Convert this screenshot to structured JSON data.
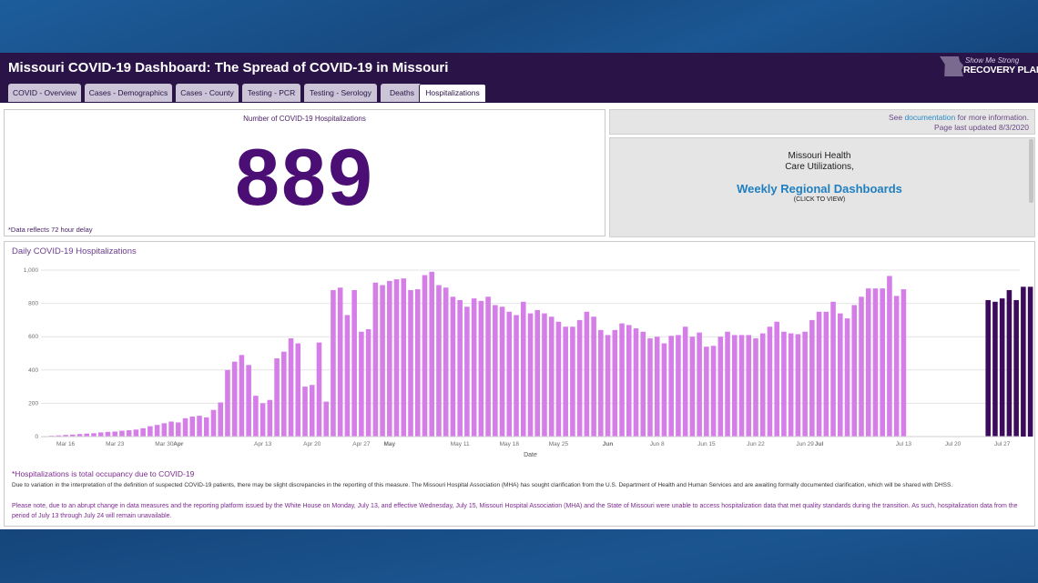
{
  "header": {
    "title": "Missouri COVID-19 Dashboard: The Spread of COVID-19 in Missouri",
    "logo_tagline": "Show Me Strong",
    "logo_name": "RECOVERY PLAN"
  },
  "tabs": [
    {
      "label": "COVID - Overview",
      "active": false
    },
    {
      "label": "Cases - Demographics",
      "active": false
    },
    {
      "label": "Cases - County",
      "active": false
    },
    {
      "label": "Testing - PCR",
      "active": false
    },
    {
      "label": "Testing - Serology",
      "active": false
    },
    {
      "label": "Deaths",
      "active": false
    },
    {
      "label": "Hospitalizations",
      "active": true
    }
  ],
  "kpi": {
    "title": "Number of COVID-19 Hospitalizations",
    "value": "889",
    "note": "*Data reflects 72 hour delay"
  },
  "info": {
    "see": "See ",
    "link": "documentation",
    "more": " for more information.",
    "updated": "Page last updated 8/3/2020"
  },
  "healthcare": {
    "line1": "Missouri Health",
    "line2": "Care Utilizations,",
    "link": "Weekly Regional Dashboards",
    "click": "(CLICK TO VIEW)"
  },
  "notes": {
    "occupancy": "*Hospitalizations is total occupancy due to COVID-19",
    "variation": "Due to variation in the interpretation of the definition of suspected COVID-19 patients, there may be slight discrepancies in the reporting of this measure. The Missouri Hospital Association (MHA) has sought clarification from the U.S. Department of Health and Human Services and are awaiting formally documented clarification, which will be shared with DHSS.",
    "change": "Please note, due to an abrupt change in data measures and the reporting platform issued by the White House on Monday, July 13, and effective Wednesday, July 15, Missouri Hospital Association (MHA) and the State of Missouri were unable to access hospitalization data that met quality standards during the transition. As such, hospitalization data from the period of July 13 through July 24 will remain unavailable."
  },
  "colors": {
    "header_bg": "#2a1347",
    "kpi_value": "#4b0e74",
    "bar_light": "#d57ee8",
    "bar_dark": "#3d0b5c",
    "link": "#1f7fbf"
  },
  "chart_data": {
    "type": "bar",
    "title": "Daily COVID-19  Hospitalizations",
    "xlabel": "Date",
    "ylabel": "",
    "ylim": [
      0,
      1000
    ],
    "yticks": [
      "0",
      "200",
      "400",
      "600",
      "800",
      "1,000"
    ],
    "ytick_values": [
      0,
      200,
      400,
      600,
      800,
      1000
    ],
    "grid": true,
    "xticks": [
      {
        "label": "Mar 16",
        "day": 3,
        "bold": false
      },
      {
        "label": "Mar 23",
        "day": 10,
        "bold": false
      },
      {
        "label": "Mar 30",
        "day": 17,
        "bold": false
      },
      {
        "label": "Apr",
        "day": 19,
        "bold": true
      },
      {
        "label": "Apr 13",
        "day": 31,
        "bold": false
      },
      {
        "label": "Apr 20",
        "day": 38,
        "bold": false
      },
      {
        "label": "Apr 27",
        "day": 45,
        "bold": false
      },
      {
        "label": "May",
        "day": 49,
        "bold": true
      },
      {
        "label": "May 11",
        "day": 59,
        "bold": false
      },
      {
        "label": "May 18",
        "day": 66,
        "bold": false
      },
      {
        "label": "May 25",
        "day": 73,
        "bold": false
      },
      {
        "label": "Jun",
        "day": 80,
        "bold": true
      },
      {
        "label": "Jun 8",
        "day": 87,
        "bold": false
      },
      {
        "label": "Jun 15",
        "day": 94,
        "bold": false
      },
      {
        "label": "Jun 22",
        "day": 101,
        "bold": false
      },
      {
        "label": "Jun 29",
        "day": 108,
        "bold": false
      },
      {
        "label": "Jul",
        "day": 110,
        "bold": true
      },
      {
        "label": "Jul 13",
        "day": 122,
        "bold": false
      },
      {
        "label": "Jul 20",
        "day": 129,
        "bold": false
      },
      {
        "label": "Jul 27",
        "day": 136,
        "bold": false
      }
    ],
    "series": [
      {
        "start_date": "2020-03-13",
        "color": "#d57ee8",
        "values": [
          0,
          5,
          7,
          10,
          12,
          15,
          18,
          20,
          25,
          28,
          30,
          35,
          38,
          42,
          50,
          62,
          70,
          80,
          90,
          85,
          110,
          120,
          125,
          115,
          160,
          205,
          400,
          450,
          490,
          430,
          245,
          200,
          220,
          470,
          510,
          590,
          560,
          300,
          310,
          565,
          210,
          880,
          895,
          730,
          880,
          630,
          645,
          925,
          910,
          935,
          945,
          950,
          880,
          885,
          970,
          990,
          910,
          895,
          840,
          820,
          780,
          830,
          815,
          840,
          790,
          780,
          750,
          730,
          810,
          740,
          760,
          740,
          720,
          690,
          660,
          660,
          700,
          750,
          720,
          640,
          610,
          640,
          680,
          670,
          650,
          630,
          590,
          600,
          560,
          605,
          610,
          660,
          600,
          625,
          540,
          545,
          600,
          630,
          610,
          610,
          610,
          590,
          620,
          660,
          690,
          630,
          620,
          615,
          630,
          700,
          750,
          750,
          810,
          740,
          710,
          790,
          840,
          890,
          890,
          890,
          965,
          845,
          885
        ]
      },
      {
        "start_date": "2020-07-25",
        "color": "#3d0b5c",
        "values": [
          820,
          810,
          830,
          880,
          820,
          900,
          900
        ]
      }
    ]
  }
}
